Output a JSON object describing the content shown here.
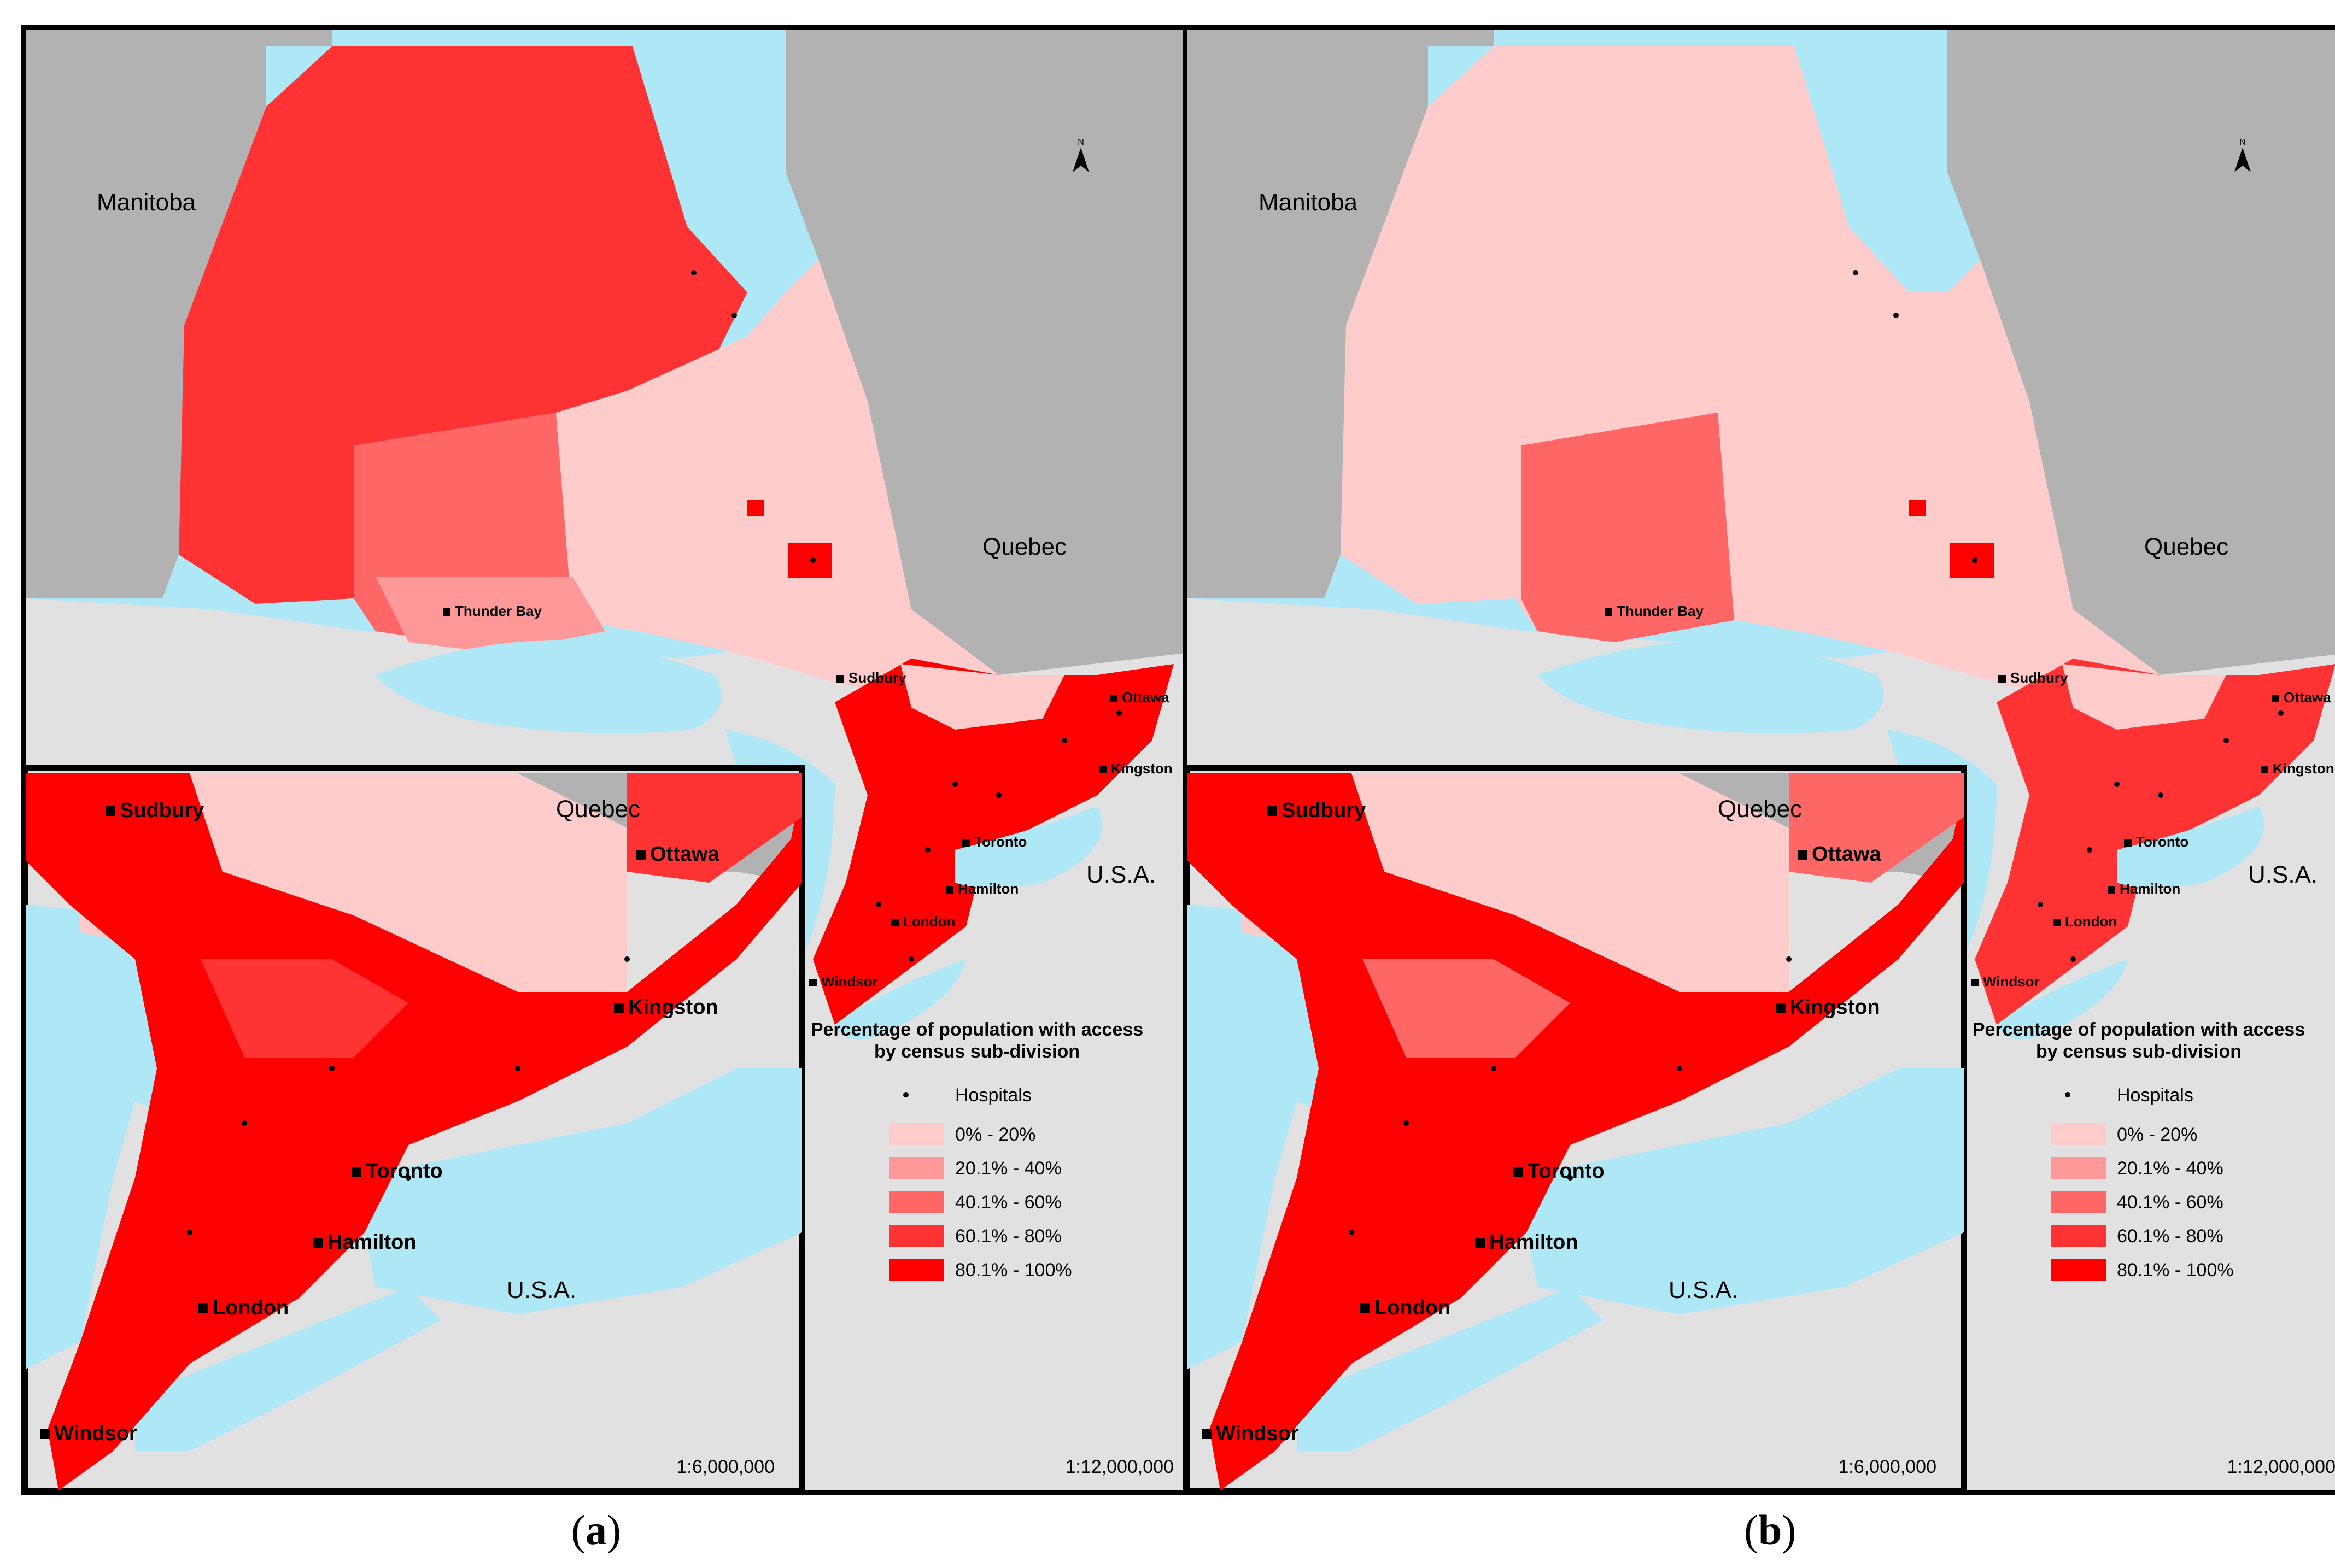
{
  "panels": [
    {
      "id": "a",
      "caption": "a",
      "regions": {
        "manitoba": "Manitoba",
        "quebec": "Quebec",
        "usa": "U.S.A."
      },
      "cities": [
        {
          "name": "Thunder Bay"
        },
        {
          "name": "Sudbury"
        },
        {
          "name": "Ottawa"
        },
        {
          "name": "Kingston"
        },
        {
          "name": "Toronto"
        },
        {
          "name": "Hamilton"
        },
        {
          "name": "London"
        },
        {
          "name": "Windsor"
        }
      ],
      "inset": {
        "regions": {
          "quebec": "Quebec",
          "usa": "U.S.A."
        },
        "cities": [
          {
            "name": "Sudbury"
          },
          {
            "name": "Ottawa"
          },
          {
            "name": "Kingston"
          },
          {
            "name": "Toronto"
          },
          {
            "name": "Hamilton"
          },
          {
            "name": "London"
          },
          {
            "name": "Windsor"
          }
        ],
        "scale": "1:6,000,000"
      },
      "scale": "1:12,000,000",
      "legend": {
        "title_line1": "Percentage of population with access",
        "title_line2": "by census sub-division",
        "hospitals_label": "Hospitals",
        "classes": [
          {
            "label": "0% - 20%",
            "color": "#ffcccc"
          },
          {
            "label": "20.1% - 40%",
            "color": "#ff9999"
          },
          {
            "label": "40.1% - 60%",
            "color": "#ff6666"
          },
          {
            "label": "60.1% - 80%",
            "color": "#ff3333"
          },
          {
            "label": "80.1% - 100%",
            "color": "#ff0000"
          }
        ]
      }
    },
    {
      "id": "b",
      "caption": "b",
      "regions": {
        "manitoba": "Manitoba",
        "quebec": "Quebec",
        "usa": "U.S.A."
      },
      "cities": [
        {
          "name": "Thunder Bay"
        },
        {
          "name": "Sudbury"
        },
        {
          "name": "Ottawa"
        },
        {
          "name": "Kingston"
        },
        {
          "name": "Toronto"
        },
        {
          "name": "Hamilton"
        },
        {
          "name": "London"
        },
        {
          "name": "Windsor"
        }
      ],
      "inset": {
        "regions": {
          "quebec": "Quebec",
          "usa": "U.S.A."
        },
        "cities": [
          {
            "name": "Sudbury"
          },
          {
            "name": "Ottawa"
          },
          {
            "name": "Kingston"
          },
          {
            "name": "Toronto"
          },
          {
            "name": "Hamilton"
          },
          {
            "name": "London"
          },
          {
            "name": "Windsor"
          }
        ],
        "scale": "1:6,000,000"
      },
      "scale": "1:12,000,000",
      "legend": {
        "title_line1": "Percentage of population with access",
        "title_line2": "by census sub-division",
        "hospitals_label": "Hospitals",
        "classes": [
          {
            "label": "0% - 20%",
            "color": "#ffcccc"
          },
          {
            "label": "20.1% - 40%",
            "color": "#ff9999"
          },
          {
            "label": "40.1% - 60%",
            "color": "#ff6666"
          },
          {
            "label": "60.1% - 80%",
            "color": "#ff3333"
          },
          {
            "label": "80.1% - 100%",
            "color": "#ff0000"
          }
        ]
      }
    }
  ],
  "colors": {
    "water": "#aee8f7",
    "land_other": "#b2b2b2",
    "usa_land": "#e1e1e1"
  }
}
